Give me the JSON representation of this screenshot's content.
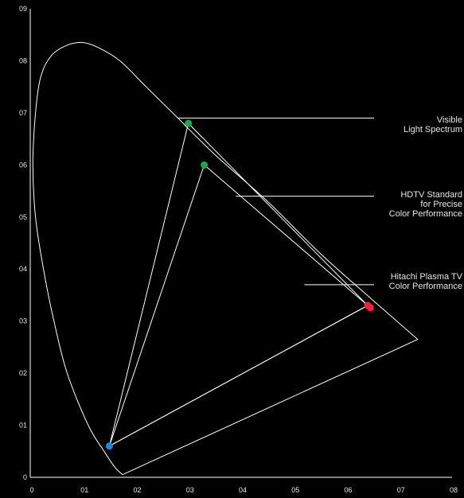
{
  "chart_data": {
    "type": "scatter",
    "title": "",
    "xlabel": "",
    "ylabel": "",
    "xlim": [
      0,
      0.8
    ],
    "ylim": [
      0,
      0.9
    ],
    "grid": false,
    "x_tick_labels": [
      "0",
      "01",
      "02",
      "03",
      "04",
      "05",
      "06",
      "07",
      "08"
    ],
    "y_tick_labels": [
      "0",
      "01",
      "02",
      "03",
      "04",
      "05",
      "06",
      "07",
      "08",
      "09"
    ],
    "x_ticks": [
      0,
      0.1,
      0.2,
      0.3,
      0.4,
      0.5,
      0.6,
      0.7,
      0.8
    ],
    "y_ticks": [
      0,
      0.1,
      0.2,
      0.3,
      0.4,
      0.5,
      0.6,
      0.7,
      0.8,
      0.9
    ],
    "colors": {
      "background": "#000000",
      "lines": "#ffffff",
      "text": "#e6e6e6",
      "red": "#ff1f3d",
      "green": "#21a64a",
      "blue": "#1f86d9"
    },
    "series": [
      {
        "name": "Visible Light Spectrum",
        "points": [
          [
            0.175,
            0.005
          ],
          [
            0.16,
            0.02
          ],
          [
            0.14,
            0.05
          ],
          [
            0.11,
            0.1
          ],
          [
            0.07,
            0.2
          ],
          [
            0.045,
            0.3
          ],
          [
            0.025,
            0.4
          ],
          [
            0.01,
            0.5
          ],
          [
            0.005,
            0.6
          ],
          [
            0.01,
            0.7
          ],
          [
            0.02,
            0.77
          ],
          [
            0.04,
            0.81
          ],
          [
            0.07,
            0.83
          ],
          [
            0.1,
            0.835
          ],
          [
            0.13,
            0.825
          ],
          [
            0.17,
            0.8
          ],
          [
            0.22,
            0.75
          ],
          [
            0.28,
            0.69
          ],
          [
            0.35,
            0.62
          ],
          [
            0.45,
            0.53
          ],
          [
            0.55,
            0.43
          ],
          [
            0.65,
            0.34
          ],
          [
            0.735,
            0.265
          ],
          [
            0.175,
            0.005
          ]
        ]
      },
      {
        "name": "HDTV Standard for Precise Color Performance",
        "points": [
          [
            0.64,
            0.33
          ],
          [
            0.3,
            0.68
          ],
          [
            0.15,
            0.06
          ],
          [
            0.64,
            0.33
          ]
        ]
      },
      {
        "name": "Hitachi Plasma TV Color Performance",
        "points": [
          [
            0.64,
            0.33
          ],
          [
            0.33,
            0.6
          ],
          [
            0.15,
            0.06
          ],
          [
            0.64,
            0.33
          ]
        ]
      }
    ],
    "markers": [
      {
        "name": "red-primary-hdtv",
        "x": 0.64,
        "y": 0.33,
        "color": "red"
      },
      {
        "name": "red-primary-plasma",
        "x": 0.645,
        "y": 0.326,
        "color": "red"
      },
      {
        "name": "green-primary-hdtv",
        "x": 0.3,
        "y": 0.68,
        "color": "green"
      },
      {
        "name": "green-primary-plasma",
        "x": 0.33,
        "y": 0.6,
        "color": "green"
      },
      {
        "name": "blue-primary",
        "x": 0.15,
        "y": 0.06,
        "color": "blue"
      }
    ],
    "annotations": [
      {
        "name": "visible-spectrum",
        "lines": [
          "Visible",
          "Light Spectrum"
        ],
        "x": 0.28,
        "y": 0.69
      },
      {
        "name": "hdtv-standard",
        "lines": [
          "HDTV Standard",
          "for Precise",
          "Color Performance"
        ],
        "x": 0.39,
        "y": 0.54
      },
      {
        "name": "plasma-tv",
        "lines": [
          "Hitachi Plasma TV",
          "Color Performance"
        ],
        "x": 0.52,
        "y": 0.37
      }
    ]
  }
}
